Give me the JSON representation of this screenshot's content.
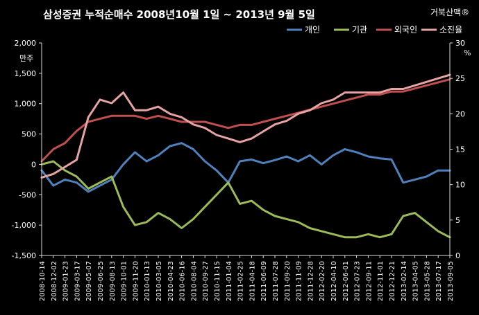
{
  "chart_data": {
    "type": "line",
    "title": "삼성증권  누적순매수  2008년10월 1일 ~ 2013년 9월 5일",
    "watermark": "거북산맥®",
    "ylabel": "만주",
    "ylabel_right": "%",
    "ylim": [
      -1500,
      2000
    ],
    "ylim_right": [
      0,
      30
    ],
    "yticks": [
      "2,000",
      "1,500",
      "1,000",
      "500",
      "0",
      "-500",
      "-1,000",
      "-1,500"
    ],
    "yticks_right": [
      "30",
      "25",
      "20",
      "15",
      "10",
      "5",
      "0"
    ],
    "grid": false,
    "legend_position": "top-right",
    "x": [
      "2008-10-14",
      "2008-12-02",
      "2009-01-23",
      "2009-03-17",
      "2009-05-07",
      "2009-06-25",
      "2009-08-13",
      "2009-10-01",
      "2009-11-20",
      "2010-01-13",
      "2010-03-05",
      "2010-04-23",
      "2010-06-16",
      "2010-08-04",
      "2010-09-27",
      "2010-11-15",
      "2011-01-04",
      "2011-02-25",
      "2011-04-18",
      "2011-06-09",
      "2011-07-28",
      "2011-09-20",
      "2011-11-09",
      "2011-12-28",
      "2012-02-20",
      "2012-04-10",
      "2012-06-01",
      "2012-07-23",
      "2012-09-11",
      "2012-11-01",
      "2012-12-21",
      "2013-02-14",
      "2013-04-05",
      "2013-05-28",
      "2013-07-17",
      "2013-09-05"
    ],
    "series": [
      {
        "name": "개인",
        "color": "#4f81bd",
        "axis": "left",
        "values": [
          -100,
          -350,
          -250,
          -300,
          -450,
          -350,
          -250,
          0,
          200,
          50,
          150,
          300,
          350,
          250,
          50,
          -100,
          -300,
          50,
          80,
          20,
          70,
          130,
          50,
          150,
          0,
          150,
          250,
          200,
          130,
          100,
          80,
          -300,
          -250,
          -200,
          -100,
          -100
        ]
      },
      {
        "name": "기관",
        "color": "#9bbb59",
        "axis": "left",
        "values": [
          0,
          50,
          -100,
          -200,
          -400,
          -300,
          -200,
          -700,
          -1000,
          -950,
          -800,
          -900,
          -1050,
          -900,
          -700,
          -500,
          -300,
          -650,
          -600,
          -750,
          -850,
          -900,
          -950,
          -1050,
          -1100,
          -1150,
          -1200,
          -1200,
          -1150,
          -1200,
          -1150,
          -850,
          -800,
          -950,
          -1100,
          -1200
        ]
      },
      {
        "name": "외국인",
        "color": "#c0504d",
        "axis": "left",
        "values": [
          50,
          250,
          350,
          550,
          700,
          750,
          800,
          800,
          800,
          750,
          800,
          750,
          700,
          700,
          700,
          650,
          600,
          650,
          650,
          700,
          750,
          800,
          850,
          900,
          950,
          1000,
          1050,
          1100,
          1150,
          1150,
          1200,
          1200,
          1250,
          1300,
          1350,
          1400
        ]
      },
      {
        "name": "소진율",
        "color": "#e6a3a3",
        "axis": "right",
        "values": [
          11,
          11.5,
          12.5,
          13.5,
          19.5,
          22,
          21.5,
          23,
          20.5,
          20.5,
          21,
          20,
          19.5,
          18.5,
          18,
          17,
          16.5,
          16,
          16.5,
          17.5,
          18.5,
          19,
          20,
          20.5,
          21.5,
          22,
          23,
          23,
          23,
          23,
          23.5,
          23.5,
          24,
          24.5,
          25,
          25.5
        ]
      }
    ]
  }
}
